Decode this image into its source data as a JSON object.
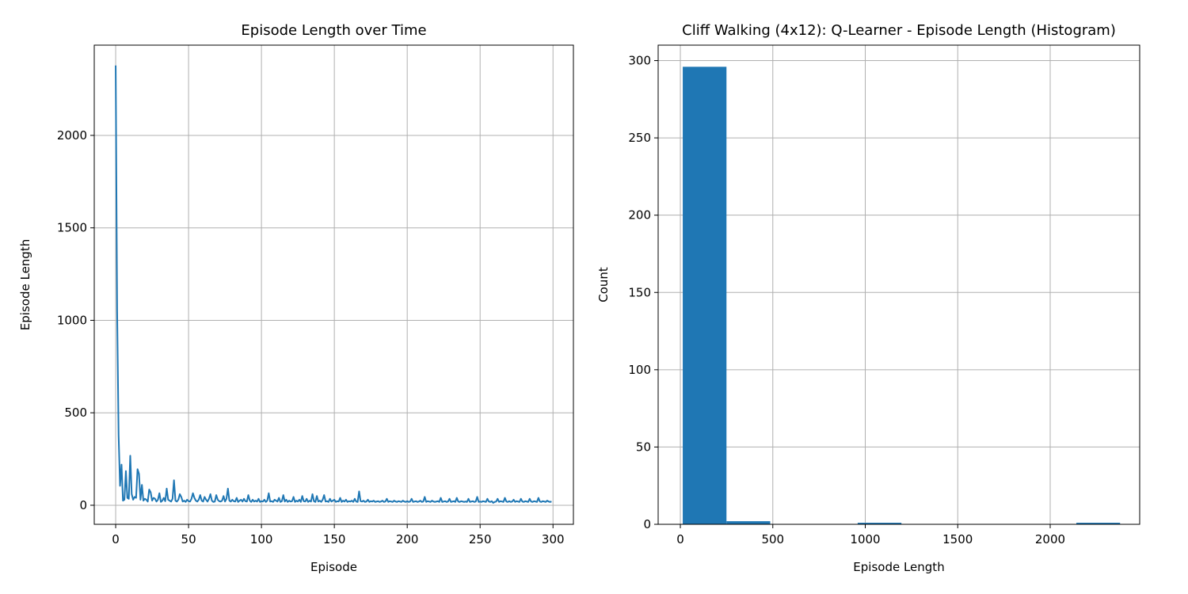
{
  "chart_data": [
    {
      "type": "line",
      "title": "Episode Length over Time",
      "xlabel": "Episode",
      "ylabel": "Episode Length",
      "x": [
        0,
        1,
        2,
        3,
        4,
        5,
        6,
        7,
        8,
        9,
        10,
        11,
        12,
        13,
        14,
        15,
        16,
        17,
        18,
        19,
        20,
        21,
        22,
        23,
        24,
        25,
        26,
        27,
        28,
        29,
        30,
        31,
        32,
        33,
        34,
        35,
        36,
        37,
        38,
        39,
        40,
        41,
        42,
        43,
        44,
        45,
        46,
        47,
        48,
        49,
        50,
        51,
        52,
        53,
        54,
        55,
        56,
        57,
        58,
        59,
        60,
        61,
        62,
        63,
        64,
        65,
        66,
        67,
        68,
        69,
        70,
        71,
        72,
        73,
        74,
        75,
        76,
        77,
        78,
        79,
        80,
        81,
        82,
        83,
        84,
        85,
        86,
        87,
        88,
        89,
        90,
        91,
        92,
        93,
        94,
        95,
        96,
        97,
        98,
        99,
        100,
        101,
        102,
        103,
        104,
        105,
        106,
        107,
        108,
        109,
        110,
        111,
        112,
        113,
        114,
        115,
        116,
        117,
        118,
        119,
        120,
        121,
        122,
        123,
        124,
        125,
        126,
        127,
        128,
        129,
        130,
        131,
        132,
        133,
        134,
        135,
        136,
        137,
        138,
        139,
        140,
        141,
        142,
        143,
        144,
        145,
        146,
        147,
        148,
        149,
        150,
        151,
        152,
        153,
        154,
        155,
        156,
        157,
        158,
        159,
        160,
        161,
        162,
        163,
        164,
        165,
        166,
        167,
        168,
        169,
        170,
        171,
        172,
        173,
        174,
        175,
        176,
        177,
        178,
        179,
        180,
        181,
        182,
        183,
        184,
        185,
        186,
        187,
        188,
        189,
        190,
        191,
        192,
        193,
        194,
        195,
        196,
        197,
        198,
        199,
        200,
        201,
        202,
        203,
        204,
        205,
        206,
        207,
        208,
        209,
        210,
        211,
        212,
        213,
        214,
        215,
        216,
        217,
        218,
        219,
        220,
        221,
        222,
        223,
        224,
        225,
        226,
        227,
        228,
        229,
        230,
        231,
        232,
        233,
        234,
        235,
        236,
        237,
        238,
        239,
        240,
        241,
        242,
        243,
        244,
        245,
        246,
        247,
        248,
        249,
        250,
        251,
        252,
        253,
        254,
        255,
        256,
        257,
        258,
        259,
        260,
        261,
        262,
        263,
        264,
        265,
        266,
        267,
        268,
        269,
        270,
        271,
        272,
        273,
        274,
        275,
        276,
        277,
        278,
        279,
        280,
        281,
        282,
        283,
        284,
        285,
        286,
        287,
        288,
        289,
        290,
        291,
        292,
        293,
        294,
        295,
        296,
        297,
        298,
        299
      ],
      "values": [
        2378,
        1050,
        380,
        105,
        220,
        25,
        30,
        185,
        40,
        35,
        268,
        60,
        30,
        45,
        40,
        195,
        170,
        30,
        110,
        25,
        35,
        30,
        20,
        85,
        70,
        25,
        40,
        35,
        20,
        30,
        65,
        18,
        25,
        40,
        22,
        90,
        30,
        25,
        20,
        35,
        135,
        25,
        20,
        30,
        60,
        45,
        20,
        25,
        18,
        30,
        22,
        20,
        35,
        65,
        40,
        25,
        20,
        30,
        55,
        25,
        20,
        45,
        30,
        20,
        35,
        60,
        25,
        18,
        20,
        55,
        30,
        22,
        20,
        25,
        50,
        20,
        35,
        90,
        25,
        20,
        30,
        22,
        20,
        40,
        18,
        25,
        30,
        20,
        35,
        22,
        20,
        55,
        25,
        18,
        30,
        20,
        25,
        20,
        35,
        18,
        22,
        20,
        30,
        18,
        25,
        65,
        20,
        22,
        18,
        30,
        25,
        20,
        40,
        18,
        22,
        55,
        20,
        30,
        18,
        25,
        20,
        22,
        45,
        18,
        25,
        20,
        30,
        18,
        50,
        22,
        20,
        35,
        18,
        25,
        20,
        60,
        22,
        18,
        50,
        20,
        25,
        18,
        30,
        55,
        20,
        22,
        18,
        35,
        20,
        25,
        30,
        18,
        22,
        20,
        40,
        18,
        25,
        20,
        30,
        18,
        22,
        20,
        25,
        18,
        35,
        20,
        18,
        75,
        22,
        20,
        25,
        18,
        20,
        30,
        18,
        22,
        20,
        25,
        18,
        20,
        22,
        18,
        20,
        25,
        18,
        20,
        35,
        18,
        22,
        20,
        18,
        25,
        20,
        18,
        22,
        20,
        18,
        25,
        20,
        18,
        22,
        18,
        20,
        35,
        18,
        20,
        22,
        18,
        20,
        25,
        18,
        20,
        45,
        18,
        22,
        20,
        18,
        25,
        20,
        18,
        20,
        22,
        18,
        40,
        18,
        20,
        22,
        18,
        20,
        35,
        18,
        20,
        22,
        18,
        40,
        20,
        18,
        22,
        20,
        18,
        20,
        18,
        35,
        18,
        20,
        22,
        18,
        20,
        45,
        18,
        20,
        18,
        22,
        20,
        18,
        35,
        20,
        18,
        22,
        13,
        18,
        20,
        35,
        18,
        22,
        20,
        18,
        40,
        20,
        18,
        22,
        18,
        20,
        30,
        18,
        22,
        20,
        18,
        35,
        20,
        18,
        22,
        20,
        18,
        35,
        20,
        18,
        22,
        20,
        18,
        40,
        20,
        18,
        22,
        20,
        18,
        25,
        20,
        18,
        20
      ],
      "color": "#1f77b4",
      "xlim": [
        -14.7,
        314
      ],
      "ylim": [
        -103,
        2488
      ],
      "xticks": [
        0,
        50,
        100,
        150,
        200,
        250,
        300
      ],
      "yticks": [
        0,
        500,
        1000,
        1500,
        2000
      ],
      "grid": true
    },
    {
      "type": "histogram",
      "title": "Cliff Walking (4x12): Q-Learner - Episode Length (Histogram)",
      "xlabel": "Episode Length",
      "ylabel": "Count",
      "bins": [
        13,
        249.5,
        486,
        722.5,
        959,
        1195.5,
        1432,
        1668.5,
        1905,
        2141.5,
        2378
      ],
      "counts": [
        296,
        2,
        0,
        0,
        1,
        0,
        0,
        0,
        0,
        1
      ],
      "color": "#1f77b4",
      "xlim": [
        -120,
        2484
      ],
      "ylim": [
        0,
        310
      ],
      "xticks": [
        0,
        500,
        1000,
        1500,
        2000
      ],
      "yticks": [
        0,
        50,
        100,
        150,
        200,
        250,
        300
      ],
      "grid": true
    }
  ]
}
